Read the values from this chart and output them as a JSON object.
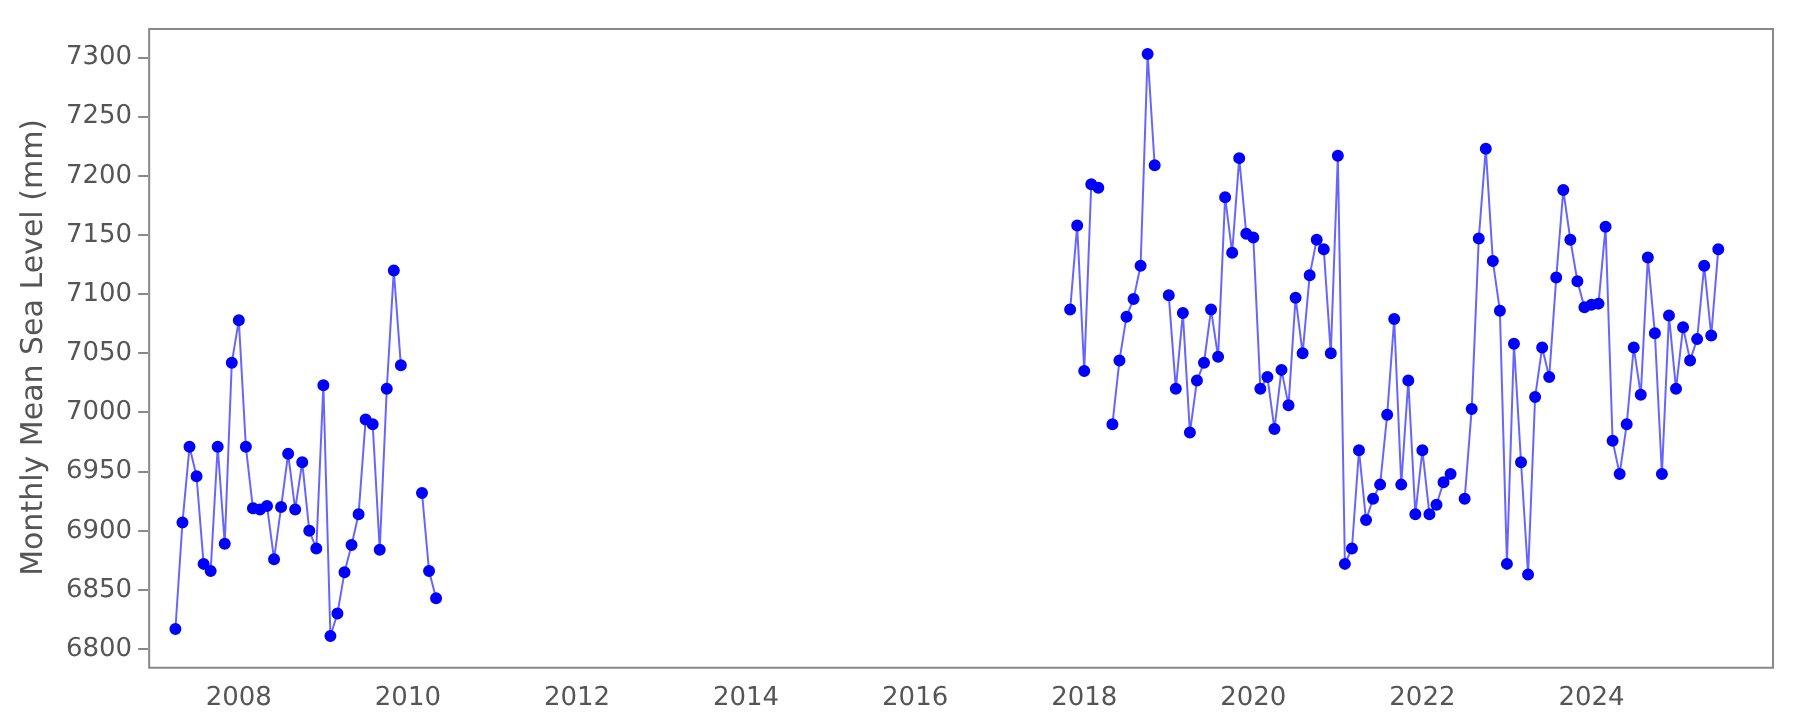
{
  "chart_data": {
    "type": "line",
    "ylabel": "Monthly Mean Sea Level (mm)",
    "marker": "circle",
    "grid": false,
    "legend": false,
    "xlim": [
      "2006-12-05",
      "2026-02-20"
    ],
    "xticks": [
      "2008",
      "2010",
      "2012",
      "2014",
      "2016",
      "2018",
      "2020",
      "2022",
      "2024"
    ],
    "ylim": [
      6785,
      7325
    ],
    "yticks": [
      6800,
      6850,
      6900,
      6950,
      7000,
      7050,
      7100,
      7150,
      7200,
      7250,
      7300
    ],
    "x": [
      "2007-04",
      "2007-05",
      "2007-06",
      "2007-07",
      "2007-08",
      "2007-09",
      "2007-10",
      "2007-11",
      "2007-12",
      "2008-01",
      "2008-02",
      "2008-03",
      "2008-04",
      "2008-05",
      "2008-06",
      "2008-07",
      "2008-08",
      "2008-09",
      "2008-10",
      "2008-11",
      "2008-12",
      "2009-01",
      "2009-02",
      "2009-03",
      "2009-04",
      "2009-05",
      "2009-06",
      "2009-07",
      "2009-08",
      "2009-09",
      "2009-10",
      "2009-11",
      "2009-12",
      "2010-01",
      "2010-03",
      "2010-04",
      "2010-05",
      "2010-06",
      "2017-11",
      "2017-12",
      "2018-01",
      "2018-02",
      "2018-03",
      "2018-04",
      "2018-05",
      "2018-06",
      "2018-07",
      "2018-08",
      "2018-09",
      "2018-10",
      "2018-11",
      "2018-12",
      "2019-01",
      "2019-02",
      "2019-03",
      "2019-04",
      "2019-05",
      "2019-06",
      "2019-07",
      "2019-08",
      "2019-09",
      "2019-10",
      "2019-11",
      "2019-12",
      "2020-01",
      "2020-02",
      "2020-03",
      "2020-04",
      "2020-05",
      "2020-06",
      "2020-07",
      "2020-08",
      "2020-09",
      "2020-10",
      "2020-11",
      "2020-12",
      "2021-01",
      "2021-02",
      "2021-03",
      "2021-04",
      "2021-05",
      "2021-06",
      "2021-07",
      "2021-08",
      "2021-09",
      "2021-10",
      "2021-11",
      "2021-12",
      "2022-01",
      "2022-02",
      "2022-03",
      "2022-04",
      "2022-05",
      "2022-06",
      "2022-07",
      "2022-08",
      "2022-09",
      "2022-10",
      "2022-11",
      "2022-12",
      "2023-01",
      "2023-02",
      "2023-03",
      "2023-04",
      "2023-05",
      "2023-06",
      "2023-07",
      "2023-08",
      "2023-09",
      "2023-10",
      "2023-11",
      "2023-12",
      "2024-01",
      "2024-02",
      "2024-03",
      "2024-04",
      "2024-05",
      "2024-06",
      "2024-07",
      "2024-08",
      "2024-09",
      "2024-10",
      "2024-11",
      "2024-12",
      "2025-01",
      "2025-02",
      "2025-03",
      "2025-04",
      "2025-05",
      "2025-06",
      "2025-07"
    ],
    "series": [
      {
        "color": "#0000ff",
        "values": [
          6817,
          6907,
          6971,
          6946,
          6872,
          6866,
          6971,
          6889,
          7042,
          7078,
          6971,
          6919,
          6918,
          6921,
          6876,
          6920,
          6965,
          6918,
          6958,
          6900,
          6885,
          7023,
          6811,
          6830,
          6865,
          6888,
          6914,
          6994,
          6990,
          6884,
          7020,
          7120,
          7040,
          null,
          6932,
          6866,
          6843,
          null,
          7087,
          7158,
          7035,
          7193,
          7190,
          null,
          6990,
          7044,
          7081,
          7096,
          7124,
          7303,
          7209,
          null,
          7099,
          7020,
          7084,
          6983,
          7027,
          7042,
          7087,
          7047,
          7182,
          7135,
          7215,
          7151,
          7148,
          7020,
          7030,
          6986,
          7036,
          7006,
          7097,
          7050,
          7116,
          7146,
          7138,
          7050,
          7217,
          6872,
          6885,
          6968,
          6909,
          6927,
          6939,
          6998,
          7079,
          6939,
          7027,
          6914,
          6968,
          6914,
          6922,
          6941,
          6948,
          null,
          6927,
          7003,
          7147,
          7223,
          7128,
          7086,
          6872,
          7058,
          6958,
          6863,
          7013,
          7055,
          7030,
          7114,
          7188,
          7146,
          7111,
          7089,
          7091,
          7092,
          7157,
          6976,
          6948,
          6990,
          7055,
          7015,
          7131,
          7067,
          6948,
          7082,
          7020,
          7072,
          7044,
          7062,
          7124,
          7065,
          7138
        ]
      }
    ]
  }
}
